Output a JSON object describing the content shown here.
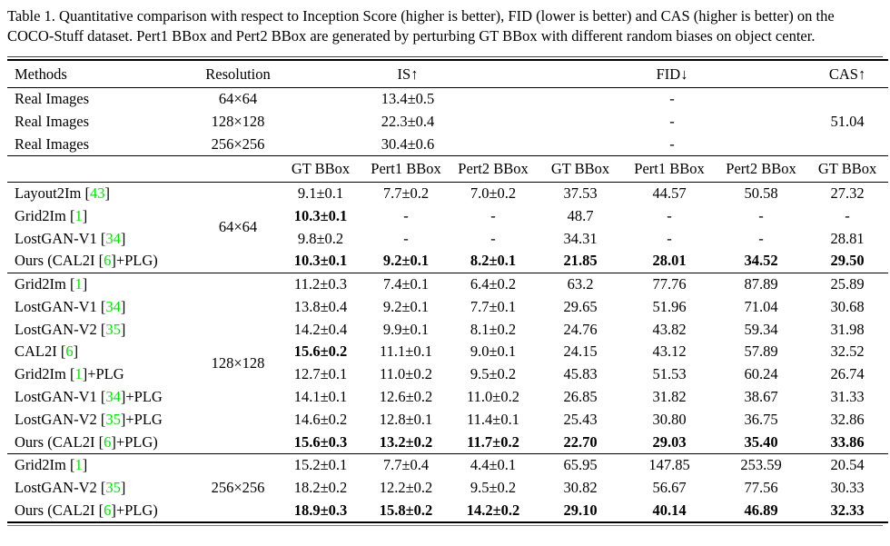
{
  "caption": "Table 1. Quantitative comparison with respect to Inception Score (higher is better), FID (lower is better) and CAS (higher is better) on the COCO-Stuff dataset. Pert1 BBox and Pert2 BBox are generated by perturbing GT BBox with different random biases on object center.",
  "colors": {
    "citation": "#00e400",
    "text": "#000000",
    "background": "#ffffff"
  },
  "table": {
    "columns": [
      "Methods",
      "Resolution",
      "IS↑",
      "FID↓",
      "CAS↑"
    ],
    "subcolumns": [
      "GT BBox",
      "Pert1 BBox",
      "Pert2 BBox",
      "GT BBox",
      "Pert1 BBox",
      "Pert2 BBox",
      "GT BBox"
    ],
    "real_image_rows": [
      {
        "method": "Real Images",
        "resolution": "64×64",
        "is": "13.4±0.5",
        "fid": "-",
        "cas": ""
      },
      {
        "method": "Real Images",
        "resolution": "128×128",
        "is": "22.3±0.4",
        "fid": "-",
        "cas": "51.04"
      },
      {
        "method": "Real Images",
        "resolution": "256×256",
        "is": "30.4±0.6",
        "fid": "-",
        "cas": ""
      }
    ],
    "groups": [
      {
        "resolution": "64×64",
        "rows": [
          {
            "pre": "Layout2Im",
            "cite": "43",
            "post": "",
            "values": [
              "9.1±0.1",
              "7.7±0.2",
              "7.0±0.2",
              "37.53",
              "44.57",
              "50.58",
              "27.32"
            ],
            "bold": []
          },
          {
            "pre": "Grid2Im",
            "cite": "1",
            "post": "",
            "values": [
              "10.3±0.1",
              "-",
              "-",
              "48.7",
              "-",
              "-",
              "-"
            ],
            "bold": [
              0
            ]
          },
          {
            "pre": "LostGAN-V1",
            "cite": "34",
            "post": "",
            "values": [
              "9.8±0.2",
              "-",
              "-",
              "34.31",
              "-",
              "-",
              "28.81"
            ],
            "bold": []
          },
          {
            "pre": "Ours (CAL2I",
            "cite": "6",
            "post": "+PLG)",
            "values": [
              "10.3±0.1",
              "9.2±0.1",
              "8.2±0.1",
              "21.85",
              "28.01",
              "34.52",
              "29.50"
            ],
            "bold": [
              0,
              1,
              2,
              3,
              4,
              5,
              6
            ]
          }
        ]
      },
      {
        "resolution": "128×128",
        "rows": [
          {
            "pre": "Grid2Im",
            "cite": "1",
            "post": "",
            "values": [
              "11.2±0.3",
              "7.4±0.1",
              "6.4±0.2",
              "63.2",
              "77.76",
              "87.89",
              "25.89"
            ],
            "bold": []
          },
          {
            "pre": "LostGAN-V1",
            "cite": "34",
            "post": "",
            "values": [
              "13.8±0.4",
              "9.2±0.1",
              "7.7±0.1",
              "29.65",
              "51.96",
              "71.04",
              "30.68"
            ],
            "bold": []
          },
          {
            "pre": "LostGAN-V2",
            "cite": "35",
            "post": "",
            "values": [
              "14.2±0.4",
              "9.9±0.1",
              "8.1±0.2",
              "24.76",
              "43.82",
              "59.34",
              "31.98"
            ],
            "bold": []
          },
          {
            "pre": "CAL2I",
            "cite": "6",
            "post": "",
            "values": [
              "15.6±0.2",
              "11.1±0.1",
              "9.0±0.1",
              "24.15",
              "43.12",
              "57.89",
              "32.52"
            ],
            "bold": [
              0
            ]
          },
          {
            "pre": "Grid2Im",
            "cite": "1",
            "post": "+PLG",
            "values": [
              "12.7±0.1",
              "11.0±0.2",
              "9.5±0.2",
              "45.83",
              "51.53",
              "60.24",
              "26.74"
            ],
            "bold": []
          },
          {
            "pre": "LostGAN-V1",
            "cite": "34",
            "post": "+PLG",
            "values": [
              "14.1±0.1",
              "12.6±0.2",
              "11.0±0.2",
              "26.85",
              "31.82",
              "38.67",
              "31.33"
            ],
            "bold": []
          },
          {
            "pre": "LostGAN-V2",
            "cite": "35",
            "post": "+PLG",
            "values": [
              "14.6±0.2",
              "12.8±0.1",
              "11.4±0.1",
              "25.43",
              "30.80",
              "36.75",
              "32.86"
            ],
            "bold": []
          },
          {
            "pre": "Ours (CAL2I",
            "cite": "6",
            "post": "+PLG)",
            "values": [
              "15.6±0.3",
              "13.2±0.2",
              "11.7±0.2",
              "22.70",
              "29.03",
              "35.40",
              "33.86"
            ],
            "bold": [
              0,
              1,
              2,
              3,
              4,
              5,
              6
            ]
          }
        ]
      },
      {
        "resolution": "256×256",
        "rows": [
          {
            "pre": "Grid2Im",
            "cite": "1",
            "post": "",
            "values": [
              "15.2±0.1",
              "7.7±0.4",
              "4.4±0.1",
              "65.95",
              "147.85",
              "253.59",
              "20.54"
            ],
            "bold": []
          },
          {
            "pre": "LostGAN-V2",
            "cite": "35",
            "post": "",
            "values": [
              "18.2±0.2",
              "12.2±0.2",
              "9.5±0.2",
              "30.82",
              "56.67",
              "77.56",
              "30.33"
            ],
            "bold": []
          },
          {
            "pre": "Ours (CAL2I",
            "cite": "6",
            "post": "+PLG)",
            "values": [
              "18.9±0.3",
              "15.8±0.2",
              "14.2±0.2",
              "29.10",
              "40.14",
              "46.89",
              "32.33"
            ],
            "bold": [
              0,
              1,
              2,
              3,
              4,
              5,
              6
            ]
          }
        ]
      }
    ]
  }
}
